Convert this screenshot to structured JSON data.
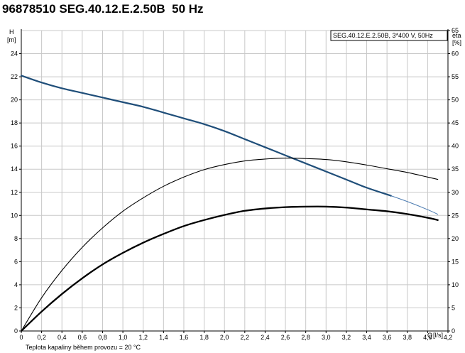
{
  "page": {
    "title": "96878510 SEG.40.12.E.2.50B  50 Hz",
    "footnote": "Teplota kapaliny během provozu = 20 °C"
  },
  "chart_data": {
    "type": "line",
    "legend_text": "SEG.40.12.E.2.50B, 3*400 V, 50Hz",
    "legend_position": "top-right",
    "grid": true,
    "x_axis": {
      "label": "Q",
      "unit": "[l/s]",
      "range": [
        0,
        4.2
      ],
      "ticks": [
        "0",
        "0,2",
        "0,4",
        "0,6",
        "0,8",
        "1,0",
        "1,2",
        "1,4",
        "1,6",
        "1,8",
        "2,0",
        "2,2",
        "2,4",
        "2,6",
        "2,8",
        "3,0",
        "3,2",
        "3,4",
        "3,6",
        "3,8",
        "4,0",
        "4,2"
      ]
    },
    "y_left_axis": {
      "label": "H",
      "unit": "[m]",
      "range": [
        0,
        26
      ],
      "ticks": [
        "0",
        "2",
        "4",
        "6",
        "8",
        "10",
        "12",
        "14",
        "16",
        "18",
        "20",
        "22",
        "24"
      ]
    },
    "y_right_axis": {
      "label": "eta",
      "unit": "[%]",
      "range": [
        0,
        65
      ],
      "ticks": [
        "0",
        "5",
        "10",
        "15",
        "20",
        "25",
        "30",
        "35",
        "40",
        "45",
        "50",
        "55",
        "60",
        "65"
      ]
    },
    "series": [
      {
        "axis": "left",
        "color": "#1f4e79",
        "x": [
          0,
          0.2,
          0.4,
          0.6,
          0.8,
          1.0,
          1.2,
          1.4,
          1.6,
          1.8,
          2.0,
          2.2,
          2.4,
          2.6,
          2.8,
          3.0,
          3.2,
          3.4,
          3.64
        ],
        "y": [
          22.1,
          21.5,
          21.0,
          20.6,
          20.2,
          19.8,
          19.4,
          18.9,
          18.4,
          17.9,
          17.3,
          16.6,
          15.9,
          15.2,
          14.5,
          13.8,
          13.1,
          12.4,
          11.7
        ]
      },
      {
        "axis": "left",
        "color": "#4a7ab0",
        "x": [
          3.64,
          3.8,
          4.0,
          4.1
        ],
        "y": [
          11.7,
          11.2,
          10.5,
          10.1
        ]
      },
      {
        "axis": "right",
        "color": "#000000",
        "x": [
          0,
          0.2,
          0.4,
          0.6,
          0.8,
          1.0,
          1.2,
          1.4,
          1.6,
          1.8,
          2.0,
          2.2,
          2.4,
          2.6,
          2.8,
          3.0,
          3.2,
          3.4,
          3.6,
          3.8,
          4.0,
          4.1
        ],
        "y": [
          0,
          7.2,
          13.1,
          18.1,
          22.3,
          25.9,
          28.8,
          31.3,
          33.3,
          34.9,
          36.0,
          36.8,
          37.2,
          37.4,
          37.3,
          37.1,
          36.6,
          35.9,
          35.1,
          34.3,
          33.3,
          32.8
        ]
      },
      {
        "axis": "right",
        "color": "#000000",
        "x": [
          0,
          0.2,
          0.4,
          0.6,
          0.8,
          1.0,
          1.2,
          1.4,
          1.6,
          1.8,
          2.0,
          2.2,
          2.4,
          2.6,
          2.8,
          3.0,
          3.2,
          3.4,
          3.6,
          3.8,
          4.0,
          4.1
        ],
        "y": [
          0,
          4.2,
          8.0,
          11.4,
          14.4,
          16.9,
          19.1,
          21.0,
          22.7,
          24.0,
          25.1,
          26.0,
          26.5,
          26.8,
          26.9,
          26.9,
          26.7,
          26.3,
          25.9,
          25.3,
          24.5,
          24.0
        ]
      }
    ]
  }
}
